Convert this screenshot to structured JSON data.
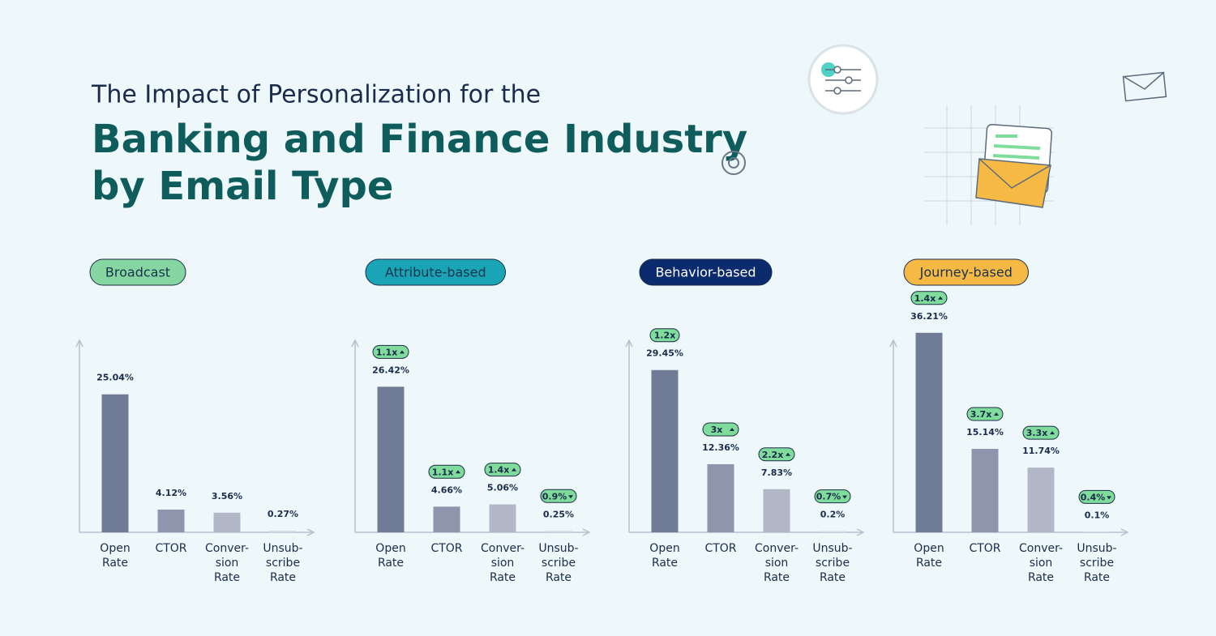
{
  "header": {
    "line1": "The Impact of Personalization for the",
    "line2": "Banking and Finance Industry",
    "line3": "by Email Type"
  },
  "chart_data": [
    {
      "type": "bar",
      "title": "Broadcast",
      "badge_color": "#86d6a2",
      "badge_text_color": "#16324f",
      "categories": [
        [
          "Open",
          "Rate"
        ],
        [
          "CTOR"
        ],
        [
          "Conver-",
          "sion",
          "Rate"
        ],
        [
          "Unsub-",
          "scribe",
          "Rate"
        ]
      ],
      "colors": [
        "#707b96",
        "#8d96ad",
        "#b1b7c7",
        "#d3d7e0"
      ],
      "values": [
        25.04,
        4.12,
        3.56,
        0.27
      ],
      "value_labels": [
        "25.04%",
        "4.12%",
        "3.56%",
        "0.27%"
      ],
      "multipliers": [
        null,
        null,
        null,
        null
      ],
      "multiplier_directions": [
        null,
        null,
        null,
        null
      ],
      "ylim": [
        0,
        40
      ]
    },
    {
      "type": "bar",
      "title": "Attribute-based",
      "badge_color": "#19a5b6",
      "badge_text_color": "#16324f",
      "categories": [
        [
          "Open",
          "Rate"
        ],
        [
          "CTOR"
        ],
        [
          "Conver-",
          "sion",
          "Rate"
        ],
        [
          "Unsub-",
          "scribe",
          "Rate"
        ]
      ],
      "colors": [
        "#707b96",
        "#8d96ad",
        "#b1b7c7",
        "#d3d7e0"
      ],
      "values": [
        26.42,
        4.66,
        5.06,
        0.25
      ],
      "value_labels": [
        "26.42%",
        "4.66%",
        "5.06%",
        "0.25%"
      ],
      "multipliers": [
        "1.1x",
        "1.1x",
        "1.4x",
        "0.9%"
      ],
      "multiplier_directions": [
        "up",
        "up",
        "up",
        "down"
      ],
      "ylim": [
        0,
        40
      ]
    },
    {
      "type": "bar",
      "title": "Behavior-based",
      "badge_color": "#0c2a6e",
      "badge_text_color": "#ffffff",
      "categories": [
        [
          "Open",
          "Rate"
        ],
        [
          "CTOR"
        ],
        [
          "Conver-",
          "sion",
          "Rate"
        ],
        [
          "Unsub-",
          "scribe",
          "Rate"
        ]
      ],
      "colors": [
        "#707b96",
        "#8d96ad",
        "#b1b7c7",
        "#d3d7e0"
      ],
      "values": [
        29.45,
        12.36,
        7.83,
        0.2
      ],
      "value_labels": [
        "29.45%",
        "12.36%",
        "7.83%",
        "0.2%"
      ],
      "multipliers": [
        "1.2x",
        "3x",
        "2.2x",
        "0.7%"
      ],
      "multiplier_directions": [
        null,
        "up",
        "up",
        "down"
      ],
      "ylim": [
        0,
        40
      ]
    },
    {
      "type": "bar",
      "title": "Journey-based",
      "badge_color": "#f6b944",
      "badge_text_color": "#16324f",
      "categories": [
        [
          "Open",
          "Rate"
        ],
        [
          "CTOR"
        ],
        [
          "Conver-",
          "sion",
          "Rate"
        ],
        [
          "Unsub-",
          "scribe",
          "Rate"
        ]
      ],
      "colors": [
        "#707b96",
        "#8d96ad",
        "#b1b7c7",
        "#d3d7e0"
      ],
      "values": [
        36.21,
        15.14,
        11.74,
        0.1
      ],
      "value_labels": [
        "36.21%",
        "15.14%",
        "11.74%",
        "0.1%"
      ],
      "multipliers": [
        "1.4x",
        "3.7x",
        "3.3x",
        "0.4%"
      ],
      "multiplier_directions": [
        "up",
        "up",
        "up",
        "down"
      ],
      "ylim": [
        0,
        40
      ]
    }
  ]
}
